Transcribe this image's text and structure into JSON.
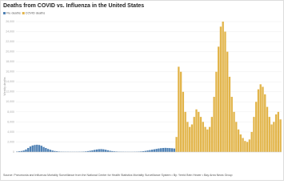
{
  "chart_data": {
    "type": "bar",
    "title": "Deaths from COVID vs. Influenza in the United States",
    "y_label": "Weekly deaths",
    "source": "Source: Pneumonia and Influenza Mortality Surveillance from the National Center for Health Statistics Mortality Surveillance System • By: Yerrid Bein Hewer • Bay Area News Group",
    "ylim": [
      0,
      26000
    ],
    "yticks": [
      0,
      {
        "value": 2000,
        "label": "2,000"
      },
      {
        "value": 4000,
        "label": "4,000"
      },
      {
        "value": 6000,
        "label": "6,000"
      },
      {
        "value": 8000,
        "label": "8,000"
      },
      {
        "value": 10000,
        "label": "10,000"
      },
      {
        "value": 12000,
        "label": "12,000"
      },
      {
        "value": 14000,
        "label": "14,000"
      },
      {
        "value": 16000,
        "label": "16,000"
      },
      {
        "value": 18000,
        "label": "18,000"
      },
      {
        "value": 20000,
        "label": "20,000"
      },
      {
        "value": 22000,
        "label": "22,000"
      },
      {
        "value": 24000,
        "label": "24,000"
      },
      {
        "value": 26000,
        "label": "26,000"
      }
    ],
    "grid": true,
    "series": [
      {
        "name": "Flu deaths",
        "color": "#4f81b4",
        "values": [
          100,
          150,
          200,
          300,
          500,
          800,
          1100,
          1300,
          1400,
          1450,
          1400,
          1250,
          1000,
          800,
          600,
          450,
          300,
          200,
          150,
          100,
          80,
          70,
          60,
          60,
          50,
          50,
          50,
          50,
          60,
          70,
          90,
          120,
          180,
          250,
          330,
          420,
          500,
          560,
          580,
          540,
          450,
          350,
          250,
          180,
          130,
          100,
          80,
          70,
          60,
          50,
          50,
          50,
          50,
          60,
          70,
          90,
          120,
          160,
          220,
          300,
          380,
          460,
          540,
          620,
          700,
          760,
          800,
          820,
          800,
          780,
          750,
          700,
          null,
          null,
          null,
          null,
          null,
          null,
          null,
          null,
          null,
          null,
          null,
          null,
          null,
          null,
          null,
          null,
          null,
          null,
          null,
          null,
          null,
          null,
          null,
          null,
          null,
          null,
          null,
          null,
          null,
          null,
          null,
          null,
          null,
          null,
          null,
          null,
          null,
          null,
          null,
          null,
          null,
          null,
          null,
          null,
          null,
          null,
          null,
          null
        ]
      },
      {
        "name": "COVID deaths",
        "color": "#e2b54b",
        "values": [
          null,
          null,
          null,
          null,
          null,
          null,
          null,
          null,
          null,
          null,
          null,
          null,
          null,
          null,
          null,
          null,
          null,
          null,
          null,
          null,
          null,
          null,
          null,
          null,
          null,
          null,
          null,
          null,
          null,
          null,
          null,
          null,
          null,
          null,
          null,
          null,
          null,
          null,
          null,
          null,
          null,
          null,
          null,
          null,
          null,
          null,
          null,
          null,
          null,
          null,
          null,
          null,
          null,
          null,
          null,
          null,
          null,
          null,
          null,
          null,
          null,
          null,
          null,
          null,
          null,
          null,
          null,
          null,
          null,
          null,
          null,
          null,
          3000,
          17000,
          16000,
          12000,
          8000,
          6000,
          5000,
          5500,
          7000,
          8500,
          8000,
          7000,
          6000,
          5000,
          4500,
          5000,
          7000,
          11000,
          16000,
          21000,
          25000,
          26000,
          24000,
          20000,
          15000,
          11000,
          8000,
          6000,
          4500,
          3500,
          2800,
          2200,
          2000,
          2500,
          4000,
          7000,
          10000,
          12500,
          13500,
          13000,
          11500,
          9000,
          7000,
          5500,
          6000,
          7500,
          8000,
          6500
        ]
      }
    ]
  }
}
